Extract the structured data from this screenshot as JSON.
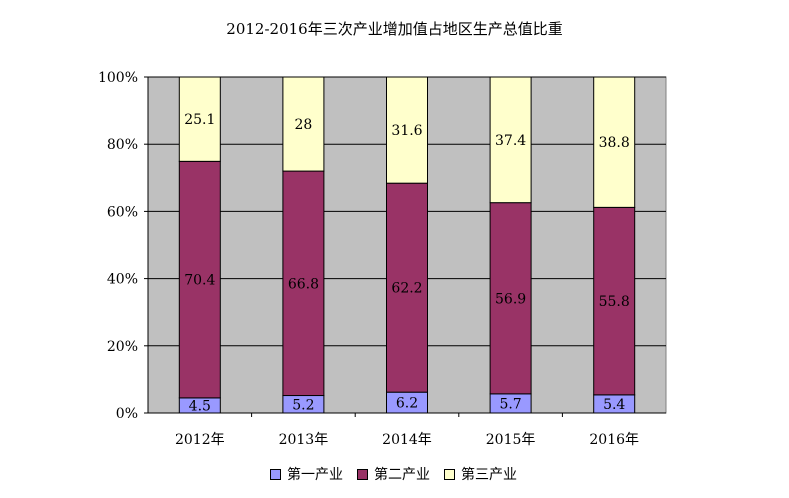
{
  "chart_data": {
    "type": "bar",
    "stacked": "percent",
    "title": "2012-2016年三次产业增加值占地区生产总值比重",
    "categories": [
      "2012年",
      "2013年",
      "2014年",
      "2015年",
      "2016年"
    ],
    "series": [
      {
        "name": "第一产业",
        "values": [
          4.5,
          5.2,
          6.2,
          5.7,
          5.4
        ],
        "color": "#9999FF"
      },
      {
        "name": "第二产业",
        "values": [
          70.4,
          66.8,
          62.2,
          56.9,
          55.8
        ],
        "color": "#993366"
      },
      {
        "name": "第三产业",
        "values": [
          25.1,
          28,
          31.6,
          37.4,
          38.8
        ],
        "color": "#FFFFCC"
      }
    ],
    "data_labels": [
      [
        "4.5",
        "5.2",
        "6.2",
        "5.7",
        "5.4"
      ],
      [
        "70.4",
        "66.8",
        "62.2",
        "56.9",
        "55.8"
      ],
      [
        "25.1",
        "28",
        "31.6",
        "37.4",
        "38.8"
      ]
    ],
    "y_ticks": [
      "0%",
      "20%",
      "40%",
      "60%",
      "80%",
      "100%"
    ],
    "ylim": [
      0,
      100
    ],
    "grid": true,
    "plot_background": "#C0C0C0",
    "legend_position": "bottom"
  }
}
